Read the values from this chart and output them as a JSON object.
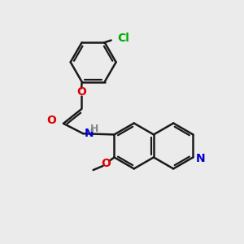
{
  "bg_color": "#ebebeb",
  "bond_color": "#1a1a1a",
  "bond_width": 1.8,
  "atom_colors": {
    "O": "#dd0000",
    "N": "#0000cc",
    "Cl": "#00aa00",
    "H_gray": "#888888",
    "C": "#1a1a1a"
  },
  "font_size": 10,
  "fig_size": [
    3.0,
    3.0
  ],
  "dpi": 100
}
